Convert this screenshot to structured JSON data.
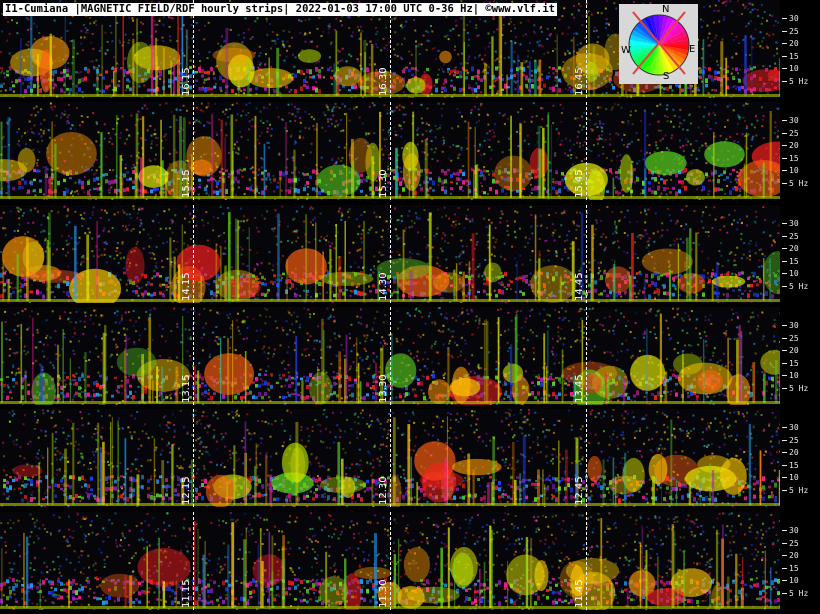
{
  "title": "I1-Cumiana |MAGNETIC FIELD/RDF hourly strips| 2022-01-03 17:00 UTC 0-36 Hz| ©www.vlf.it",
  "compass": {
    "n": "N",
    "s": "S",
    "e": "E",
    "w": "W"
  },
  "chart_data": {
    "type": "heatmap",
    "title": "I1-Cumiana |MAGNETIC FIELD/RDF hourly strips| 2022-01-03 17:00 UTC 0-36 Hz| ©www.vlf.it",
    "ylabel": "Hz",
    "ylim": [
      0,
      36
    ],
    "y_ticks": [
      "30",
      "25",
      "20",
      "15",
      "10",
      "5 Hz"
    ],
    "strips": [
      {
        "time_labels": [
          "16.15",
          "16.30",
          "16.45"
        ]
      },
      {
        "time_labels": [
          "15.15",
          "15.30",
          "15.45"
        ]
      },
      {
        "time_labels": [
          "14.15",
          "14.30",
          "14.45"
        ]
      },
      {
        "time_labels": [
          "13.15",
          "13.30",
          "13.45"
        ]
      },
      {
        "time_labels": [
          "12.15",
          "12.30",
          "12.45"
        ]
      },
      {
        "time_labels": [
          "11.15",
          "11.30",
          "11.45"
        ]
      }
    ],
    "colors": [
      "#ff2020",
      "#ff8800",
      "#ffd000",
      "#e8f000",
      "#60e020",
      "#20d0a0",
      "#20a0ff",
      "#2040ff",
      "#a020c0",
      "#ff20a0"
    ]
  }
}
